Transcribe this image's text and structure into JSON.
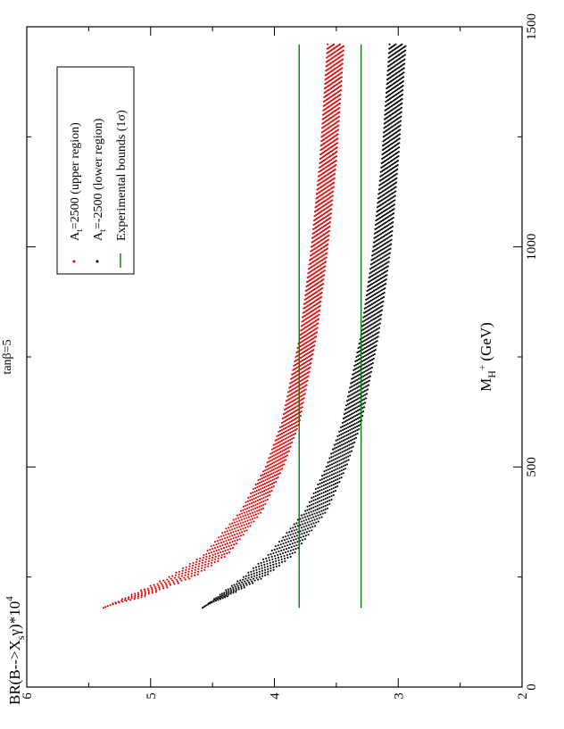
{
  "chart_data": {
    "type": "scatter",
    "orientation": "rotated-90-ccw",
    "title": "tanβ=5",
    "xlabel_main": "M",
    "xlabel_sub": "H",
    "xlabel_sup": "+",
    "xlabel_unit": " (GeV)",
    "ylabel_pre": "BR(B-->X",
    "ylabel_sub": "s",
    "ylabel_mid": "γ)*10",
    "ylabel_sup": "4",
    "xlim": [
      0,
      1500
    ],
    "ylim": [
      2,
      6
    ],
    "x_ticks": [
      0,
      500,
      1000,
      1500
    ],
    "y_ticks": [
      2,
      3,
      4,
      5,
      6
    ],
    "legend_position": "top-left",
    "series": [
      {
        "name": "A_t=2500 (upper region)",
        "legend_pre": "A",
        "legend_sub": "t",
        "legend_post": "=2500 (upper region)",
        "kind": "band",
        "color": "#e00000",
        "x_range": [
          180,
          1460
        ],
        "upper_edge": [
          [
            180,
            5.38
          ],
          [
            250,
            4.85
          ],
          [
            300,
            4.57
          ],
          [
            400,
            4.27
          ],
          [
            500,
            4.07
          ],
          [
            600,
            3.94
          ],
          [
            800,
            3.79
          ],
          [
            1000,
            3.7
          ],
          [
            1200,
            3.63
          ],
          [
            1460,
            3.57
          ]
        ],
        "lower_edge": [
          [
            180,
            5.38
          ],
          [
            200,
            5.1
          ],
          [
            250,
            4.65
          ],
          [
            300,
            4.38
          ],
          [
            400,
            4.1
          ],
          [
            500,
            3.93
          ],
          [
            600,
            3.8
          ],
          [
            800,
            3.66
          ],
          [
            1000,
            3.57
          ],
          [
            1200,
            3.5
          ],
          [
            1460,
            3.44
          ]
        ]
      },
      {
        "name": "A_t=-2500 (lower region)",
        "legend_pre": "A",
        "legend_sub": "t",
        "legend_post": "=-2500 (lower region)",
        "kind": "band",
        "color": "#000000",
        "x_range": [
          180,
          1460
        ],
        "upper_edge": [
          [
            180,
            4.58
          ],
          [
            250,
            4.25
          ],
          [
            300,
            4.05
          ],
          [
            400,
            3.75
          ],
          [
            500,
            3.58
          ],
          [
            600,
            3.45
          ],
          [
            800,
            3.3
          ],
          [
            1000,
            3.2
          ],
          [
            1200,
            3.13
          ],
          [
            1460,
            3.07
          ]
        ],
        "lower_edge": [
          [
            180,
            4.58
          ],
          [
            200,
            4.42
          ],
          [
            250,
            4.08
          ],
          [
            300,
            3.85
          ],
          [
            400,
            3.58
          ],
          [
            500,
            3.42
          ],
          [
            600,
            3.3
          ],
          [
            800,
            3.16
          ],
          [
            1000,
            3.06
          ],
          [
            1200,
            3.0
          ],
          [
            1460,
            2.94
          ]
        ]
      },
      {
        "name": "Experimental bounds (1σ)",
        "legend_pre": "Experimental bounds (1σ)",
        "legend_sub": "",
        "legend_post": "",
        "kind": "hlines",
        "color": "#008000",
        "x_range": [
          180,
          1460
        ],
        "values": [
          3.8,
          3.3
        ]
      }
    ]
  }
}
